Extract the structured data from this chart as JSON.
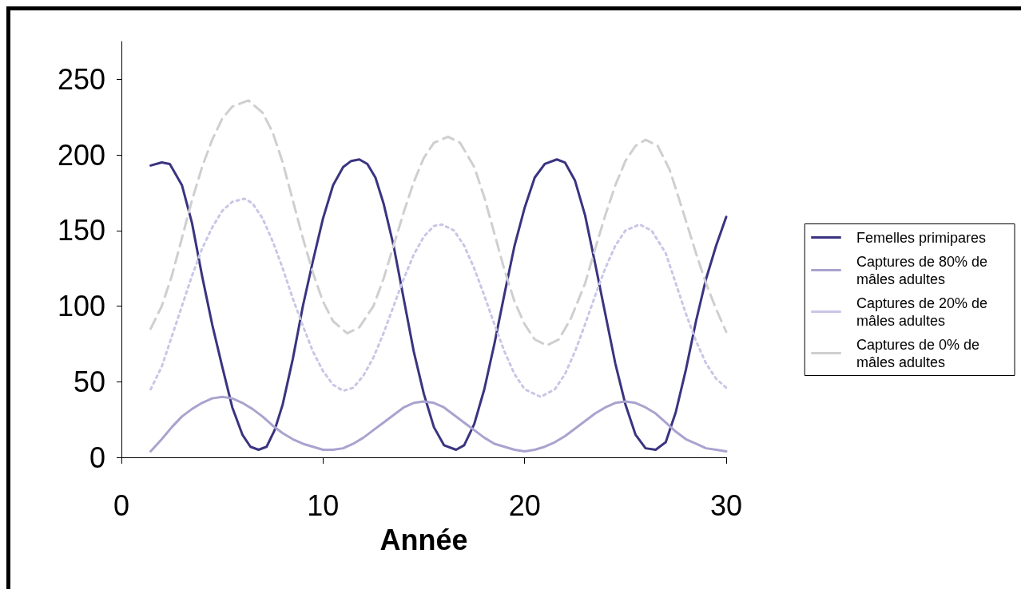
{
  "chart_data": {
    "type": "line",
    "xlabel": "Année",
    "xlim": [
      0,
      30
    ],
    "xticks": [
      0,
      10,
      20,
      30
    ],
    "ylim": [
      0,
      275
    ],
    "yticks": [
      0,
      50,
      100,
      150,
      200,
      250
    ],
    "grid": false,
    "legend": "right",
    "marker": "none",
    "series": [
      {
        "name": "Femelles primipares",
        "color": "#3a3480",
        "line_style": "solid",
        "x": [
          1.45,
          2,
          2.4,
          3,
          3.5,
          4,
          4.5,
          5,
          5.5,
          6,
          6.4,
          6.8,
          7.2,
          7.6,
          8,
          8.5,
          9,
          9.5,
          10,
          10.5,
          11,
          11.4,
          11.8,
          12.2,
          12.6,
          13,
          13.5,
          14,
          14.5,
          15,
          15.5,
          16,
          16.6,
          17,
          17.5,
          18,
          18.5,
          19,
          19.5,
          20,
          20.5,
          21,
          21.6,
          22,
          22.5,
          23,
          23.5,
          24,
          24.5,
          25,
          25.5,
          26,
          26.5,
          27,
          27.5,
          28,
          28.5,
          29,
          29.5,
          30
        ],
        "values": [
          193,
          195,
          194,
          180,
          155,
          120,
          88,
          60,
          33,
          15,
          7,
          5,
          7,
          18,
          35,
          65,
          100,
          130,
          158,
          180,
          192,
          196,
          197,
          194,
          185,
          168,
          140,
          105,
          70,
          42,
          20,
          8,
          5,
          8,
          22,
          45,
          75,
          108,
          140,
          165,
          185,
          194,
          197,
          195,
          183,
          160,
          128,
          95,
          62,
          35,
          15,
          6,
          5,
          10,
          30,
          58,
          90,
          118,
          140,
          159
        ]
      },
      {
        "name": "Captures de 80% de mâles adultes",
        "color": "#a9a3cf",
        "line_style": "solid",
        "x": [
          1.45,
          2,
          2.5,
          3,
          3.5,
          4,
          4.5,
          5,
          5.5,
          6,
          6.5,
          7,
          7.5,
          8,
          8.5,
          9,
          9.5,
          10,
          10.5,
          11,
          11.5,
          12,
          12.5,
          13,
          13.5,
          14,
          14.5,
          15,
          15.5,
          16,
          16.5,
          17,
          17.5,
          18,
          18.5,
          19,
          19.5,
          20,
          20.5,
          21,
          21.5,
          22,
          22.5,
          23,
          23.5,
          24,
          24.5,
          25,
          25.5,
          26,
          26.5,
          27,
          27.5,
          28,
          28.5,
          29,
          29.5,
          30
        ],
        "values": [
          4,
          12,
          20,
          27,
          32,
          36,
          39,
          40,
          39,
          36,
          32,
          27,
          21,
          16,
          12,
          9,
          7,
          5,
          5,
          6,
          9,
          13,
          18,
          23,
          28,
          33,
          36,
          37,
          36,
          33,
          28,
          23,
          18,
          13,
          9,
          7,
          5,
          4,
          5,
          7,
          10,
          14,
          19,
          24,
          29,
          33,
          36,
          37,
          36,
          33,
          29,
          23,
          17,
          12,
          9,
          6,
          5,
          4
        ]
      },
      {
        "name": "Captures de 20% de mâles adultes",
        "color": "#c9c6e6",
        "line_style": "dotted",
        "x": [
          1.45,
          2,
          2.5,
          3,
          3.5,
          4,
          4.5,
          5,
          5.5,
          6.1,
          6.5,
          7,
          7.5,
          8,
          8.5,
          9,
          9.5,
          10,
          10.5,
          11,
          11.5,
          12,
          12.5,
          13,
          13.5,
          14,
          14.5,
          15,
          15.5,
          15.9,
          16.5,
          17,
          17.5,
          18,
          18.5,
          19,
          19.5,
          20,
          20.8,
          21.5,
          22,
          22.5,
          23,
          23.5,
          24,
          24.5,
          25,
          25.7,
          26.3,
          27,
          27.5,
          28,
          28.5,
          29,
          29.5,
          30
        ],
        "values": [
          45,
          60,
          80,
          100,
          120,
          138,
          152,
          163,
          169,
          171,
          168,
          158,
          143,
          125,
          105,
          87,
          70,
          57,
          48,
          44,
          46,
          54,
          66,
          82,
          100,
          118,
          134,
          146,
          153,
          154,
          150,
          140,
          125,
          107,
          88,
          70,
          55,
          45,
          40,
          45,
          55,
          70,
          88,
          107,
          125,
          140,
          150,
          154,
          150,
          135,
          115,
          95,
          77,
          62,
          52,
          46
        ]
      },
      {
        "name": "Captures de 0% de mâles adultes",
        "color": "#cfcfcf",
        "line_style": "dashed",
        "x": [
          1.45,
          2,
          2.5,
          3,
          3.5,
          4,
          4.5,
          5,
          5.5,
          6.3,
          7,
          7.5,
          8,
          8.5,
          9,
          9.5,
          10,
          10.5,
          11.2,
          11.8,
          12.5,
          13,
          13.5,
          14,
          14.5,
          15,
          15.5,
          16.2,
          16.8,
          17.5,
          18,
          18.5,
          19,
          19.5,
          20,
          20.5,
          21.1,
          21.7,
          22.3,
          23,
          23.5,
          24,
          24.5,
          25,
          25.5,
          26,
          26.6,
          27.2,
          27.8,
          28.5,
          29,
          29.5,
          30
        ],
        "values": [
          85,
          100,
          120,
          145,
          170,
          192,
          210,
          224,
          232,
          236,
          228,
          215,
          195,
          170,
          145,
          122,
          103,
          90,
          82,
          86,
          100,
          118,
          140,
          162,
          182,
          198,
          208,
          212,
          208,
          192,
          172,
          148,
          124,
          103,
          88,
          78,
          74,
          78,
          92,
          115,
          138,
          160,
          180,
          196,
          206,
          210,
          206,
          190,
          165,
          135,
          115,
          98,
          83
        ]
      }
    ]
  }
}
